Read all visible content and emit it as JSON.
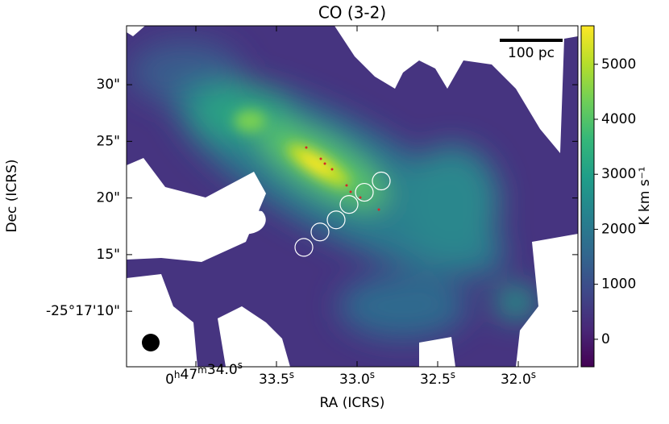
{
  "chart_data": {
    "type": "image",
    "title": "CO (3-2)",
    "xlabel": "RA (ICRS)",
    "ylabel": "Dec (ICRS)",
    "xlim": [
      34.43,
      31.63
    ],
    "xticks": [
      {
        "value": 34.0,
        "label": "0h47m34.0s"
      },
      {
        "value": 33.5,
        "label": "33.5s"
      },
      {
        "value": 33.0,
        "label": "33.0s"
      },
      {
        "value": 32.5,
        "label": "32.5s"
      },
      {
        "value": 32.0,
        "label": "32.0s"
      }
    ],
    "ylim": [
      35.2,
      5.1
    ],
    "yticks": [
      {
        "value": 10,
        "label": "-25°17'10\""
      },
      {
        "value": 15,
        "label": "15\""
      },
      {
        "value": 20,
        "label": "20\""
      },
      {
        "value": 25,
        "label": "25\""
      },
      {
        "value": 30,
        "label": "30\""
      }
    ],
    "clim": [
      -500,
      5700
    ],
    "cticks": [
      0,
      1000,
      2000,
      3000,
      4000,
      5000
    ],
    "clabel": "K km s⁻¹",
    "scalebar_label": "100 pc",
    "apertures": {
      "x": [
        33.33,
        33.23,
        33.13,
        33.05,
        32.955,
        32.85
      ],
      "y": [
        15.64,
        17.0,
        18.07,
        19.43,
        20.5,
        21.5
      ]
    },
    "colors": [
      "#440154",
      "#482878",
      "#3e4989",
      "#31688e",
      "#26828e",
      "#1f9e89",
      "#35b779",
      "#6ece58",
      "#b5de2b",
      "#fde725"
    ]
  }
}
